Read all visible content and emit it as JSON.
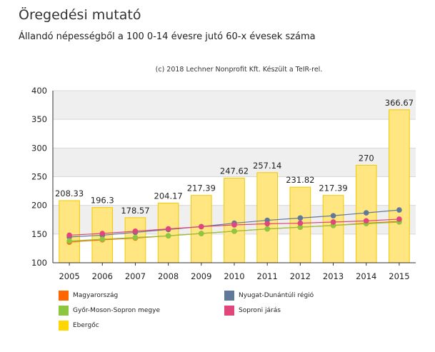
{
  "chart_data": {
    "type": "bar",
    "title": "Öregedési mutató",
    "subtitle": "Állandó népességből a 100 0-14 évesre jutó 60-x évesek száma",
    "credit": "(c) 2018 Lechner Nonprofit Kft. Készült a TeIR-rel.",
    "categories": [
      "2005",
      "2006",
      "2007",
      "2008",
      "2009",
      "2010",
      "2011",
      "2012",
      "2013",
      "2014",
      "2015"
    ],
    "ylim": [
      100,
      400
    ],
    "yticks": [
      "100",
      "150",
      "200",
      "250",
      "300",
      "350",
      "400"
    ],
    "grid": true,
    "bars": {
      "name": "Ebergőc",
      "color": "#FFD700",
      "values": [
        208.33,
        196.3,
        178.57,
        204.17,
        217.39,
        247.62,
        257.14,
        231.82,
        217.39,
        270,
        366.67
      ],
      "labels": [
        "208.33",
        "196.3",
        "178.57",
        "204.17",
        "217.39",
        "247.62",
        "257.14",
        "231.82",
        "217.39",
        "270",
        "366.67"
      ]
    },
    "series": [
      {
        "name": "Magyarország",
        "color": "#FF6600",
        "values": [
          136,
          140,
          143,
          147,
          151,
          155,
          159,
          162,
          165,
          169,
          172
        ]
      },
      {
        "name": "Nyugat-Dunántúli régió",
        "color": "#60789A",
        "values": [
          145,
          148,
          153,
          158,
          163,
          169,
          174,
          178,
          182,
          187,
          192
        ]
      },
      {
        "name": "Győr-Moson-Sopron megye",
        "color": "#8DC63F",
        "values": [
          138,
          141,
          144,
          147,
          151,
          155,
          159,
          162,
          165,
          168,
          171
        ]
      },
      {
        "name": "Soproni járás",
        "color": "#E0457B",
        "values": [
          148,
          151,
          155,
          159,
          163,
          166,
          168,
          169,
          171,
          173,
          176
        ]
      }
    ],
    "legend": [
      {
        "name": "Magyarország",
        "color": "#FF6600"
      },
      {
        "name": "Nyugat-Dunántúli régió",
        "color": "#60789A"
      },
      {
        "name": "Győr-Moson-Sopron megye",
        "color": "#8DC63F"
      },
      {
        "name": "Soproni járás",
        "color": "#E0457B"
      },
      {
        "name": "Ebergőc",
        "color": "#FFD700"
      }
    ]
  }
}
